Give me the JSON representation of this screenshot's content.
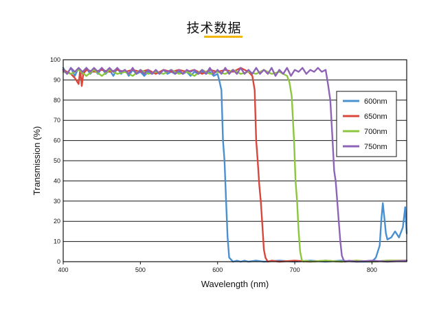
{
  "page": {
    "heading": "技术数据",
    "accent_color": "#f2b705"
  },
  "chart_data": {
    "type": "line",
    "xlabel": "Wavelength (nm)",
    "ylabel": "Transmission (%)",
    "xlim": [
      400,
      845
    ],
    "ylim": [
      0,
      100
    ],
    "x_ticks": [
      400,
      500,
      600,
      700,
      800
    ],
    "y_ticks": [
      0,
      10,
      20,
      30,
      40,
      50,
      60,
      70,
      80,
      90,
      100
    ],
    "grid": "horizontal",
    "legend_position": "right",
    "series": [
      {
        "name": "600nm",
        "color": "#4a90d0",
        "x": [
          400,
          405,
          410,
          415,
          420,
          425,
          430,
          435,
          440,
          445,
          450,
          455,
          460,
          465,
          470,
          475,
          480,
          485,
          490,
          495,
          500,
          505,
          510,
          515,
          520,
          525,
          530,
          535,
          540,
          545,
          550,
          555,
          560,
          565,
          570,
          575,
          580,
          585,
          590,
          595,
          600,
          602,
          605,
          607,
          609,
          611,
          613,
          615,
          620,
          625,
          630,
          635,
          640,
          650,
          660,
          680,
          700,
          720,
          740,
          760,
          780,
          800,
          805,
          810,
          812,
          814,
          816,
          818,
          820,
          825,
          830,
          835,
          840,
          843,
          845
        ],
        "y": [
          96,
          93,
          96,
          92,
          96,
          93,
          96,
          93,
          95,
          93,
          96,
          93,
          95,
          92,
          96,
          93,
          95,
          92,
          95,
          93,
          94,
          92,
          94,
          93,
          94,
          93,
          95,
          93,
          94,
          93,
          94,
          93,
          94,
          92,
          94,
          93,
          94,
          93,
          94,
          92,
          93,
          90,
          85,
          60,
          50,
          30,
          12,
          2,
          0,
          0.5,
          0,
          0.5,
          0,
          0.5,
          0,
          0.5,
          0,
          0.5,
          0,
          0.5,
          0,
          0,
          2,
          8,
          20,
          29,
          22,
          14,
          11,
          12,
          15,
          12,
          17,
          27,
          14
        ]
      },
      {
        "name": "650nm",
        "color": "#d9463b",
        "x": [
          400,
          405,
          410,
          415,
          420,
          422,
          424,
          426,
          430,
          440,
          450,
          460,
          470,
          480,
          490,
          500,
          510,
          520,
          530,
          540,
          550,
          560,
          570,
          580,
          590,
          600,
          610,
          620,
          630,
          640,
          645,
          648,
          650,
          652,
          654,
          656,
          658,
          660,
          662,
          665,
          670,
          680,
          700,
          720,
          740,
          760,
          780,
          800,
          820,
          845
        ],
        "y": [
          95,
          94,
          93,
          91,
          88,
          95,
          87,
          93,
          95,
          94,
          95,
          94,
          95,
          94,
          95,
          94,
          95,
          93,
          95,
          94,
          95,
          94,
          95,
          93,
          95,
          94,
          95,
          94,
          96,
          94,
          92,
          85,
          60,
          50,
          38,
          30,
          18,
          6,
          2,
          0,
          0.5,
          0,
          0.5,
          0,
          0.5,
          0,
          0.5,
          0,
          0.5,
          0.5
        ]
      },
      {
        "name": "700nm",
        "color": "#8cc63f",
        "x": [
          400,
          410,
          420,
          430,
          440,
          450,
          460,
          470,
          480,
          490,
          500,
          510,
          520,
          530,
          540,
          550,
          560,
          570,
          580,
          590,
          600,
          610,
          620,
          630,
          640,
          650,
          660,
          670,
          680,
          690,
          693,
          696,
          699,
          701,
          703,
          705,
          707,
          709,
          711,
          715,
          720,
          740,
          760,
          780,
          800,
          820,
          845
        ],
        "y": [
          94,
          93,
          95,
          92,
          95,
          92,
          95,
          93,
          94,
          92,
          95,
          93,
          94,
          93,
          95,
          93,
          94,
          92,
          95,
          93,
          94,
          93,
          95,
          93,
          94,
          93,
          95,
          93,
          94,
          92,
          89,
          82,
          60,
          40,
          30,
          15,
          5,
          1,
          0,
          0.5,
          0,
          0.5,
          0,
          0.5,
          0,
          0.5,
          0.5
        ]
      },
      {
        "name": "750nm",
        "color": "#8e63b6",
        "x": [
          400,
          405,
          410,
          415,
          420,
          425,
          430,
          435,
          440,
          445,
          450,
          455,
          460,
          465,
          470,
          475,
          480,
          485,
          490,
          495,
          500,
          505,
          510,
          515,
          520,
          525,
          530,
          535,
          540,
          545,
          550,
          555,
          560,
          565,
          570,
          575,
          580,
          585,
          590,
          595,
          600,
          605,
          610,
          615,
          620,
          625,
          630,
          635,
          640,
          645,
          650,
          655,
          660,
          665,
          670,
          675,
          680,
          685,
          690,
          695,
          700,
          705,
          710,
          715,
          720,
          725,
          730,
          735,
          740,
          743,
          746,
          749,
          751,
          753,
          755,
          757,
          759,
          761,
          763,
          765,
          770,
          780,
          800,
          820,
          845
        ],
        "y": [
          95,
          93,
          96,
          94,
          96,
          94,
          96,
          94,
          96,
          94,
          96,
          94,
          96,
          94,
          96,
          94,
          95,
          93,
          96,
          93,
          95,
          93,
          95,
          93,
          95,
          93,
          95,
          94,
          95,
          93,
          95,
          93,
          95,
          94,
          95,
          93,
          95,
          93,
          96,
          93,
          95,
          93,
          96,
          93,
          95,
          93,
          96,
          93,
          95,
          93,
          96,
          93,
          95,
          93,
          96,
          92,
          95,
          93,
          96,
          92,
          95,
          94,
          96,
          93,
          95,
          94,
          96,
          94,
          95,
          88,
          80,
          60,
          45,
          40,
          30,
          20,
          10,
          3,
          1,
          0,
          0.5,
          0,
          0.5,
          0,
          0.5
        ]
      }
    ]
  }
}
